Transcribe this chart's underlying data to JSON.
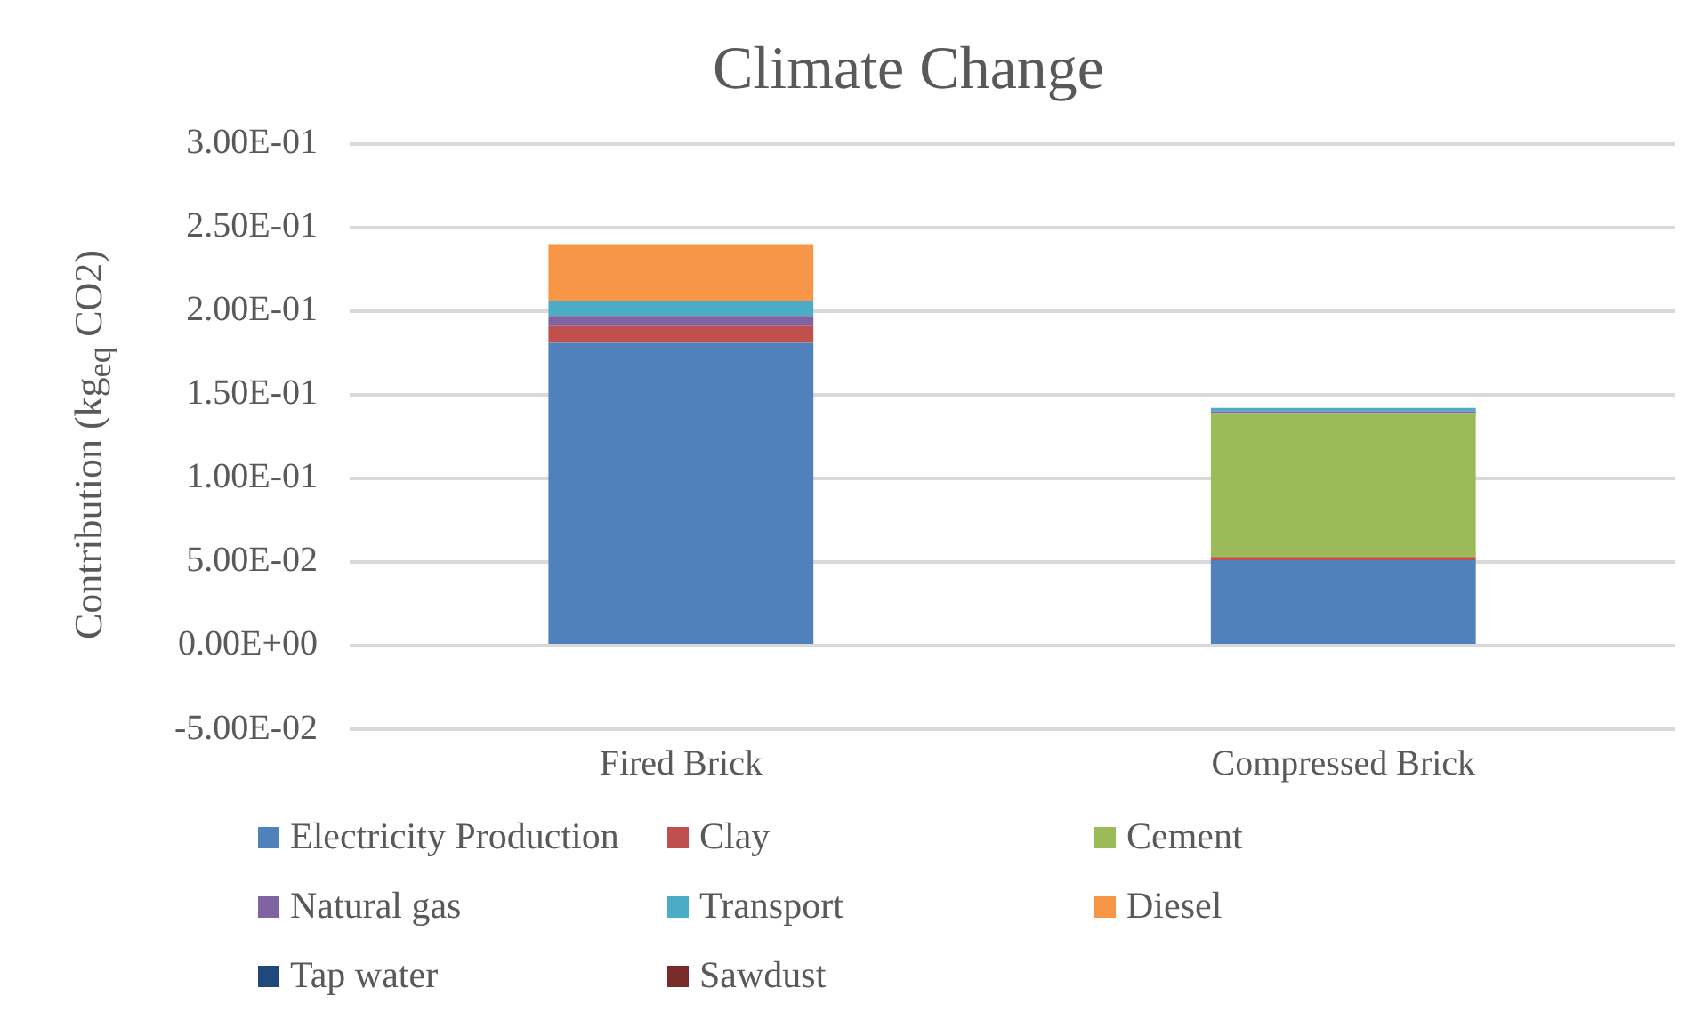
{
  "chart_data": {
    "type": "bar",
    "title": "Climate Change",
    "ylabel": "Contribution (kg$_{eq}$ CO2)",
    "categories": [
      "Fired Brick",
      "Compressed Brick"
    ],
    "stacked": true,
    "grid": "y",
    "legend": "bottom",
    "ylim": [
      -0.05,
      0.3
    ],
    "yticks": [
      {
        "value": -0.05,
        "label": "-5.00E-02"
      },
      {
        "value": 0,
        "label": "0.00E+00"
      },
      {
        "value": 0.05,
        "label": "5.00E-02"
      },
      {
        "value": 0.1,
        "label": "1.00E-01"
      },
      {
        "value": 0.15,
        "label": "1.50E-01"
      },
      {
        "value": 0.2,
        "label": "2.00E-01"
      },
      {
        "value": 0.25,
        "label": "2.50E-01"
      },
      {
        "value": 0.3,
        "label": "3.00E-01"
      }
    ],
    "series": [
      {
        "name": "Electricity Production",
        "color": "#4f81bd",
        "values": [
          0.181,
          0.051
        ]
      },
      {
        "name": "Clay",
        "color": "#c0504d",
        "values": [
          0.01,
          0.002
        ]
      },
      {
        "name": "Cement",
        "color": "#9bbb59",
        "values": [
          0,
          0.086
        ]
      },
      {
        "name": "Natural gas",
        "color": "#8064a2",
        "values": [
          0.006,
          0.001
        ]
      },
      {
        "name": "Transport",
        "color": "#4bacc6",
        "values": [
          0.009,
          0.002
        ]
      },
      {
        "name": "Diesel",
        "color": "#f79646",
        "values": [
          0.034,
          0
        ]
      },
      {
        "name": "Tap water",
        "color": "#1f497d",
        "values": [
          0,
          0
        ]
      },
      {
        "name": "Sawdust",
        "color": "#772c2a",
        "values": [
          0,
          0
        ]
      }
    ]
  }
}
